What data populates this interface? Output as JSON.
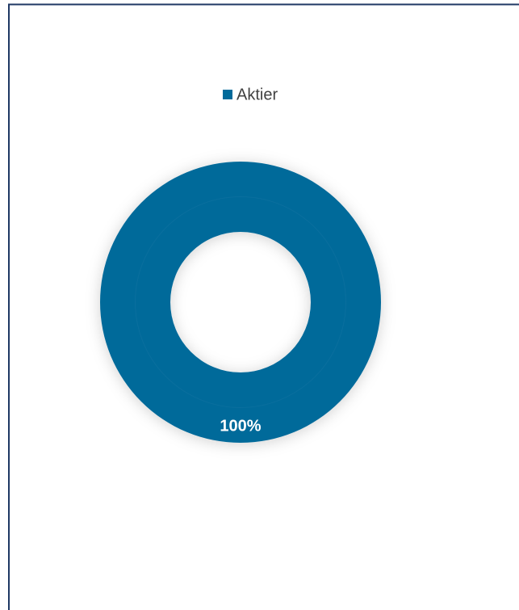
{
  "chart_data": {
    "type": "donut",
    "categories": [
      "Aktier"
    ],
    "values": [
      100
    ],
    "value_labels": [
      "100%"
    ],
    "colors": [
      "#006a9a"
    ],
    "legend": "top"
  }
}
